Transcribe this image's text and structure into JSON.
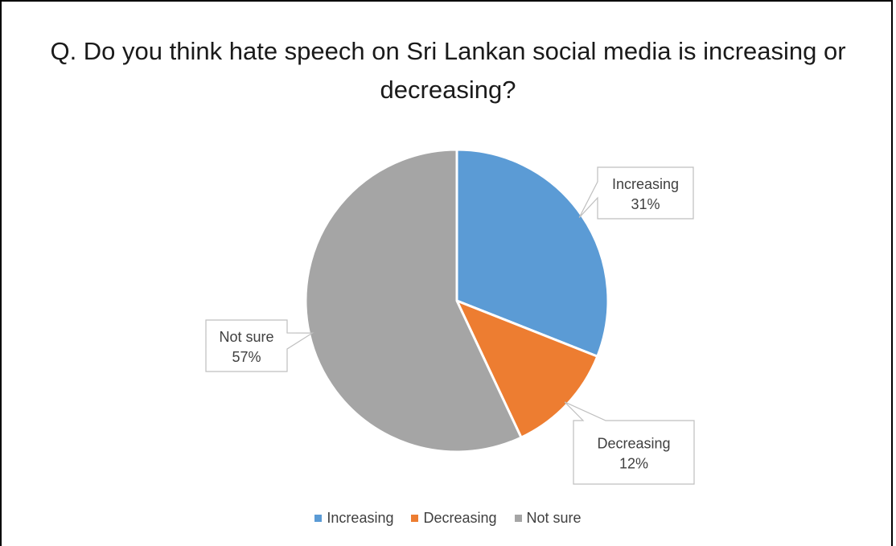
{
  "chart_data": {
    "type": "pie",
    "title": "Q. Do you think hate speech on Sri Lankan social media is increasing or decreasing?",
    "categories": [
      "Increasing",
      "Decreasing",
      "Not sure"
    ],
    "values": [
      31,
      12,
      57
    ],
    "value_labels": [
      "31%",
      "12%",
      "57%"
    ],
    "colors": [
      "#5b9bd5",
      "#ed7d31",
      "#a5a5a5"
    ],
    "legend_position": "bottom"
  }
}
